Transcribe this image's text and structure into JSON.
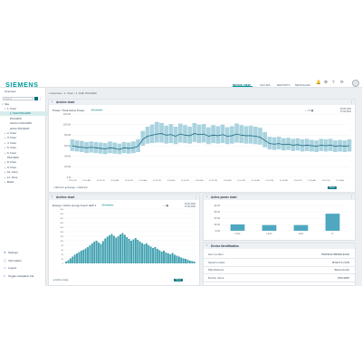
{
  "header": {
    "logo": "SIEMENS",
    "tabs": [
      "DEVICE VIEW",
      "VALUES",
      "REPORTS",
      "MESSAGES"
    ],
    "active_tab": "DEVICE VIEW"
  },
  "sidebar": {
    "search_placeholder": "Search",
    "items": [
      {
        "label": "Overview",
        "indent": 0,
        "twisty": ""
      },
      {
        "label": "Site",
        "indent": 0,
        "twisty": "▾"
      },
      {
        "label": "1. Floor",
        "indent": 1,
        "twisty": "▾"
      },
      {
        "label": "1. Path PAC4200",
        "indent": 2,
        "twisty": "",
        "selected": true
      },
      {
        "label": "PAC3220",
        "indent": 2,
        "twisty": ""
      },
      {
        "label": "Sentron PAC3200",
        "indent": 2,
        "twisty": ""
      },
      {
        "label": "active PAC3220",
        "indent": 2,
        "twisty": ""
      },
      {
        "label": "2. Floor",
        "indent": 1,
        "twisty": "▸"
      },
      {
        "label": "3. Floor",
        "indent": 1,
        "twisty": "▸"
      },
      {
        "label": "4. Floor",
        "indent": 1,
        "twisty": "▸"
      },
      {
        "label": "5. Floor",
        "indent": 1,
        "twisty": "▸"
      },
      {
        "label": "6. Floor",
        "indent": 1,
        "twisty": "▸"
      },
      {
        "label": "PAC4200",
        "indent": 1,
        "twisty": ""
      },
      {
        "label": "8. Floor",
        "indent": 1,
        "twisty": "▸"
      },
      {
        "label": "9. Floor",
        "indent": 1,
        "twisty": "▸"
      },
      {
        "label": "10. Floor",
        "indent": 1,
        "twisty": "▸"
      },
      {
        "label": "11. Floor",
        "indent": 1,
        "twisty": "▸"
      },
      {
        "label": "Boiler",
        "indent": 1,
        "twisty": "▸"
      }
    ],
    "bottom": [
      {
        "icon": "⚙",
        "label": "Settings"
      },
      {
        "icon": "ⓘ",
        "label": "Information"
      },
      {
        "icon": "↪",
        "label": "Logout"
      },
      {
        "icon": "≡",
        "label": "Toggle navigation bar"
      }
    ]
  },
  "breadcrumb": {
    "items": [
      "Overview",
      "1. Floor",
      "1. Path PAC4200"
    ]
  },
  "archive_top": {
    "title": "Archive chart",
    "subtitle": "Power / Total Active Power",
    "chip": "Ø 5 minutes",
    "range_from": "00.00.2022",
    "range_to": "07.03.2022",
    "legend": [
      "Minimum",
      "Average",
      "Maximum"
    ],
    "reset": "Reset"
  },
  "archive_bottom": {
    "title": "Archive chart",
    "subtitle": "Energy / Active energy import tariff 1",
    "chip": "Ø 5 minutes",
    "range_from": "00.00.2022",
    "range_to": "07.03.2022",
    "legend": [
      "Active energy"
    ],
    "reset": "Reset"
  },
  "active_power": {
    "title": "Active power chart"
  },
  "device_id": {
    "title": "Device Identification",
    "rows": [
      {
        "label": "Item number",
        "value": "7KM4212-0BA00-3AA0"
      },
      {
        "label": "Serial number",
        "value": "BYA171-71A5"
      },
      {
        "label": "Manufacturer",
        "value": "Siemens AG"
      },
      {
        "label": "Device name",
        "value": "PAC4200"
      }
    ]
  },
  "chart_data": [
    {
      "type": "line",
      "title": "Power / Total Active Power",
      "xlabel": "",
      "ylabel": "",
      "x": [
        "12:00 PM",
        "04:00 PM",
        "08:00 PM",
        "12:00 AM",
        "04:00 AM",
        "08:00 AM",
        "12:00 PM",
        "04:00 PM",
        "08:00 PM",
        "12:00 AM",
        "04:00 AM",
        "08:00 AM",
        "12:00 PM",
        "04:00 PM",
        "08:00 PM",
        "12:00 AM",
        "04:00 AM",
        "08:00 AM",
        "12:00 PM",
        "04:00 PM",
        "08:00 PM",
        "12:00 AM",
        "04:00 AM",
        "08:00 AM",
        "12:00 PM",
        "04:00 PM",
        "08:00 PM",
        "12:00 AM",
        "04:00 AM",
        "08:00 AM",
        "12:00 PM",
        "04:00 PM",
        "08:00 PM",
        "12:00 AM",
        "04:00 AM",
        "08:00 AM",
        "12:00 PM",
        "04:00 PM",
        "08:00 PM",
        "12:00 AM",
        "04:00 AM",
        "08:00 AM",
        "12:00 PM",
        "04:00 PM",
        "08:00 PM",
        "12:00 AM",
        "04:00 AM",
        "08:00 AM",
        "12:00 PM",
        "04:00 PM",
        "08:00 PM",
        "12:00 AM",
        "04:00 AM",
        "08:00 AM",
        "12:00 PM",
        "04:00 PM",
        "08:00 PM",
        "12:00 AM",
        "04:00 AM",
        "08:00 AM"
      ],
      "yticks": [
        "0 W",
        "20 kW",
        "40 kW",
        "60 kW",
        "80 kW",
        "100 kW",
        "120 kW"
      ],
      "ylim": [
        0,
        120
      ],
      "series": [
        {
          "name": "Minimum",
          "values": [
            50,
            49,
            48,
            46,
            47,
            46,
            45,
            44,
            46,
            45,
            44,
            46,
            45,
            46,
            48,
            60,
            64,
            65,
            66,
            66,
            64,
            65,
            63,
            66,
            65,
            64,
            67,
            65,
            66,
            63,
            65,
            64,
            65,
            63,
            64,
            66,
            65,
            64,
            64,
            63,
            62,
            57,
            53,
            52,
            53,
            51,
            52,
            50,
            51,
            49,
            50,
            49,
            48,
            50,
            49,
            50,
            48,
            49,
            48,
            49
          ]
        },
        {
          "name": "Average",
          "values": [
            60,
            58,
            57,
            56,
            57,
            56,
            55,
            54,
            56,
            55,
            53,
            56,
            55,
            56,
            59,
            72,
            78,
            80,
            82,
            83,
            80,
            81,
            78,
            82,
            80,
            79,
            83,
            81,
            82,
            78,
            80,
            79,
            81,
            78,
            79,
            82,
            80,
            79,
            79,
            78,
            76,
            70,
            64,
            63,
            64,
            62,
            63,
            61,
            62,
            60,
            61,
            60,
            59,
            61,
            60,
            61,
            59,
            60,
            59,
            60
          ]
        },
        {
          "name": "Maximum",
          "values": [
            72,
            70,
            69,
            67,
            68,
            67,
            66,
            65,
            68,
            66,
            64,
            67,
            66,
            68,
            72,
            88,
            96,
            100,
            105,
            103,
            98,
            101,
            96,
            102,
            99,
            96,
            103,
            100,
            101,
            95,
            99,
            97,
            100,
            95,
            97,
            102,
            99,
            97,
            98,
            96,
            94,
            86,
            77,
            76,
            77,
            74,
            75,
            73,
            74,
            72,
            73,
            71,
            70,
            73,
            72,
            73,
            70,
            71,
            70,
            72
          ]
        }
      ]
    },
    {
      "type": "bar",
      "title": "Energy / Active energy import tariff 1",
      "series": [
        {
          "name": "Active energy",
          "values": [
            8,
            14,
            22,
            30,
            38,
            44,
            50,
            56,
            60,
            66,
            72,
            80,
            88,
            96,
            100,
            92,
            86,
            98,
            110,
            118,
            124,
            130,
            122,
            114,
            120,
            128,
            134,
            126,
            116,
            108,
            100,
            106,
            112,
            104,
            96,
            90,
            84,
            88,
            80,
            74,
            68,
            72,
            64,
            58,
            52,
            56,
            48,
            44,
            40,
            46,
            38,
            34,
            30,
            26,
            22,
            20,
            16,
            12,
            10,
            8
          ]
        }
      ],
      "ylim": [
        0,
        240
      ],
      "yticks": [
        "0",
        "20",
        "40",
        "60",
        "80",
        "100",
        "120",
        "140",
        "160",
        "180",
        "200",
        "220",
        "240"
      ]
    },
    {
      "type": "bar",
      "title": "Active power chart",
      "categories": [
        "L1/L2",
        "L2/L3",
        "L3/L1",
        "N"
      ],
      "values": [
        10,
        9,
        9,
        27
      ],
      "yticks": [
        "0 kW",
        "10 kW",
        "20 kW",
        "30 kW",
        "40 kW"
      ],
      "ylim": [
        0,
        40
      ]
    }
  ],
  "colors": {
    "brand": "#009999",
    "accent": "#00707a",
    "band": "#a9d3df",
    "average_line": "#1d6a80",
    "energy_bar": "#3fa0b0",
    "power_bar": "#4fa8c0"
  }
}
